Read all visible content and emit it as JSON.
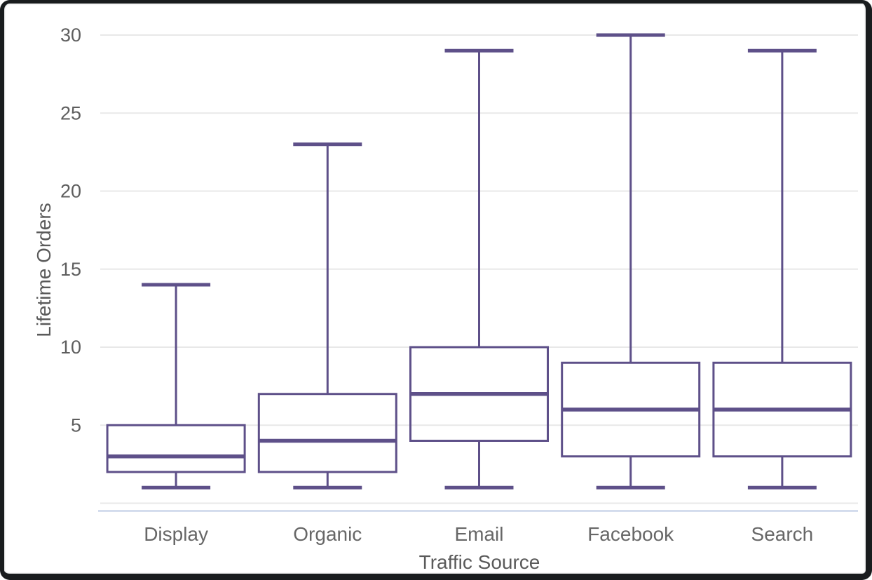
{
  "chart_data": {
    "type": "box",
    "title": "",
    "xlabel": "Traffic Source",
    "ylabel": "Lifetime Orders",
    "categories": [
      "Display",
      "Organic",
      "Email",
      "Facebook",
      "Search"
    ],
    "series": [
      {
        "name": "Display",
        "min": 1,
        "q1": 2,
        "median": 3,
        "q3": 5,
        "max": 14
      },
      {
        "name": "Organic",
        "min": 1,
        "q1": 2,
        "median": 4,
        "q3": 7,
        "max": 23
      },
      {
        "name": "Email",
        "min": 1,
        "q1": 4,
        "median": 7,
        "q3": 10,
        "max": 29
      },
      {
        "name": "Facebook",
        "min": 1,
        "q1": 3,
        "median": 6,
        "q3": 9,
        "max": 30
      },
      {
        "name": "Search",
        "min": 1,
        "q1": 3,
        "median": 6,
        "q3": 9,
        "max": 29
      }
    ],
    "yticks": [
      5,
      10,
      15,
      20,
      25,
      30
    ],
    "gridlines": [
      0,
      5,
      10,
      15,
      20,
      25,
      30
    ],
    "ylim": [
      -0.5,
      31
    ],
    "grid": true,
    "legend": false,
    "box_color": "#5e5089",
    "grid_color": "#e8e8e8",
    "axis_line_color": "#ccd5ea",
    "tick_color": "#5e5e5e",
    "label_color": "#676767",
    "title_color": "#5a5a5a"
  }
}
